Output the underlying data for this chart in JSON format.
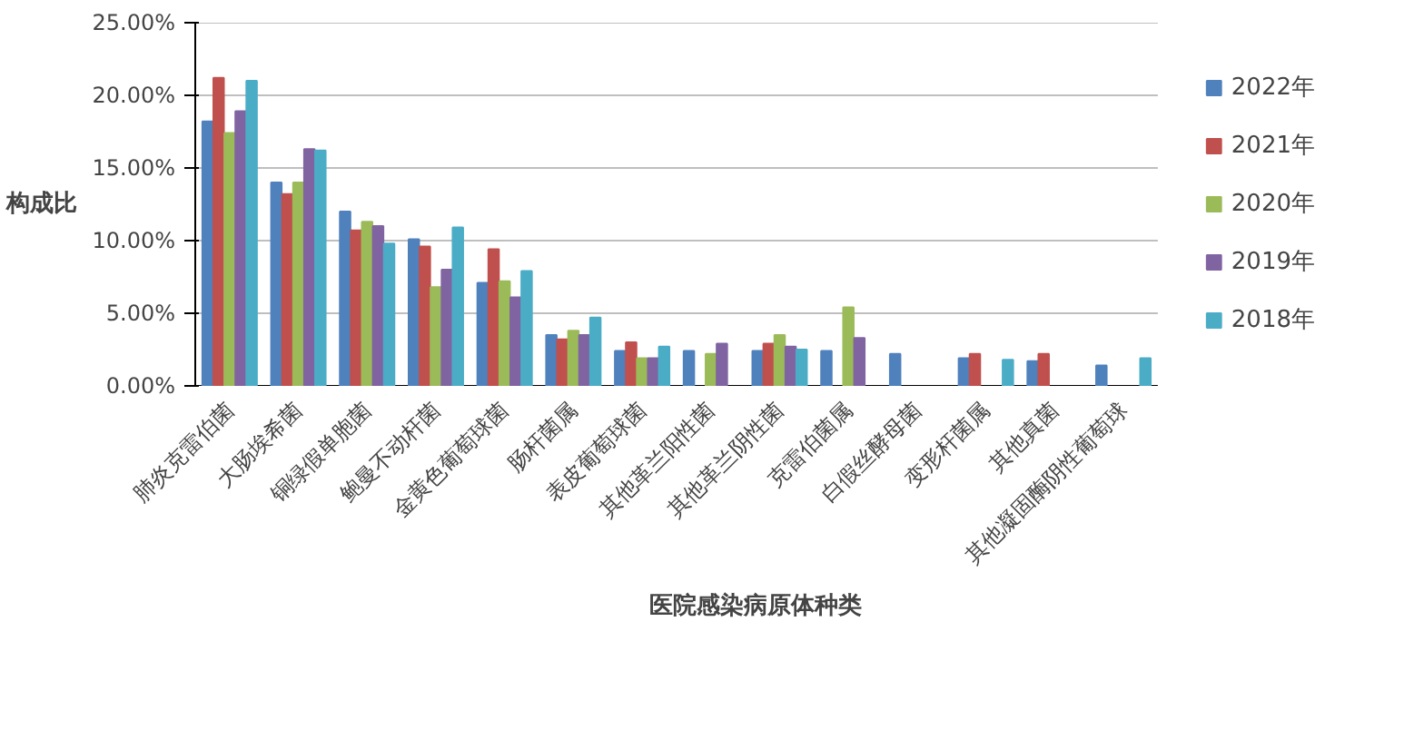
{
  "chart_data": {
    "type": "bar",
    "xlabel": "医院感染病原体种类",
    "ylabel": "构成比",
    "categories": [
      "肺炎克雷伯菌",
      "大肠埃希菌",
      "铜绿假单胞菌",
      "鲍曼不动杆菌",
      "金黄色葡萄球菌",
      "肠杆菌属",
      "表皮葡萄球菌",
      "其他革兰阳性菌",
      "其他革兰阴性菌",
      "克雷伯菌属",
      "白假丝酵母菌",
      "变形杆菌属",
      "其他真菌",
      "其他凝固酶阴性葡萄球"
    ],
    "series": [
      {
        "name": "2022年",
        "color": "#4f81bd",
        "values": [
          18.2,
          14.0,
          12.0,
          10.1,
          7.1,
          3.5,
          2.4,
          2.4,
          2.4,
          2.4,
          2.2,
          1.9,
          1.7,
          1.4
        ]
      },
      {
        "name": "2021年",
        "color": "#c0504d",
        "values": [
          21.2,
          13.2,
          10.7,
          9.6,
          9.4,
          3.2,
          3.0,
          null,
          2.9,
          null,
          null,
          2.2,
          2.2,
          null
        ]
      },
      {
        "name": "2020年",
        "color": "#9bbb59",
        "values": [
          17.4,
          14.0,
          11.3,
          6.8,
          7.2,
          3.8,
          1.9,
          2.2,
          3.5,
          5.4,
          null,
          null,
          null,
          null
        ]
      },
      {
        "name": "2019年",
        "color": "#8064a2",
        "values": [
          18.9,
          16.3,
          11.0,
          8.0,
          6.1,
          3.5,
          1.9,
          2.9,
          2.7,
          3.3,
          null,
          null,
          null,
          null
        ]
      },
      {
        "name": "2018年",
        "color": "#4bacc6",
        "values": [
          21.0,
          16.2,
          9.8,
          10.9,
          7.9,
          4.7,
          2.7,
          null,
          2.5,
          null,
          null,
          1.8,
          null,
          1.9
        ]
      }
    ],
    "ylim": [
      0,
      25
    ],
    "yticks": [
      {
        "value": 0,
        "label": "0.00%"
      },
      {
        "value": 5,
        "label": "5.00%"
      },
      {
        "value": 10,
        "label": "10.00%"
      },
      {
        "value": 15,
        "label": "15.00%"
      },
      {
        "value": 20,
        "label": "20.00%"
      },
      {
        "value": 25,
        "label": "25.00%"
      }
    ],
    "grid": "y",
    "legend": "right"
  }
}
